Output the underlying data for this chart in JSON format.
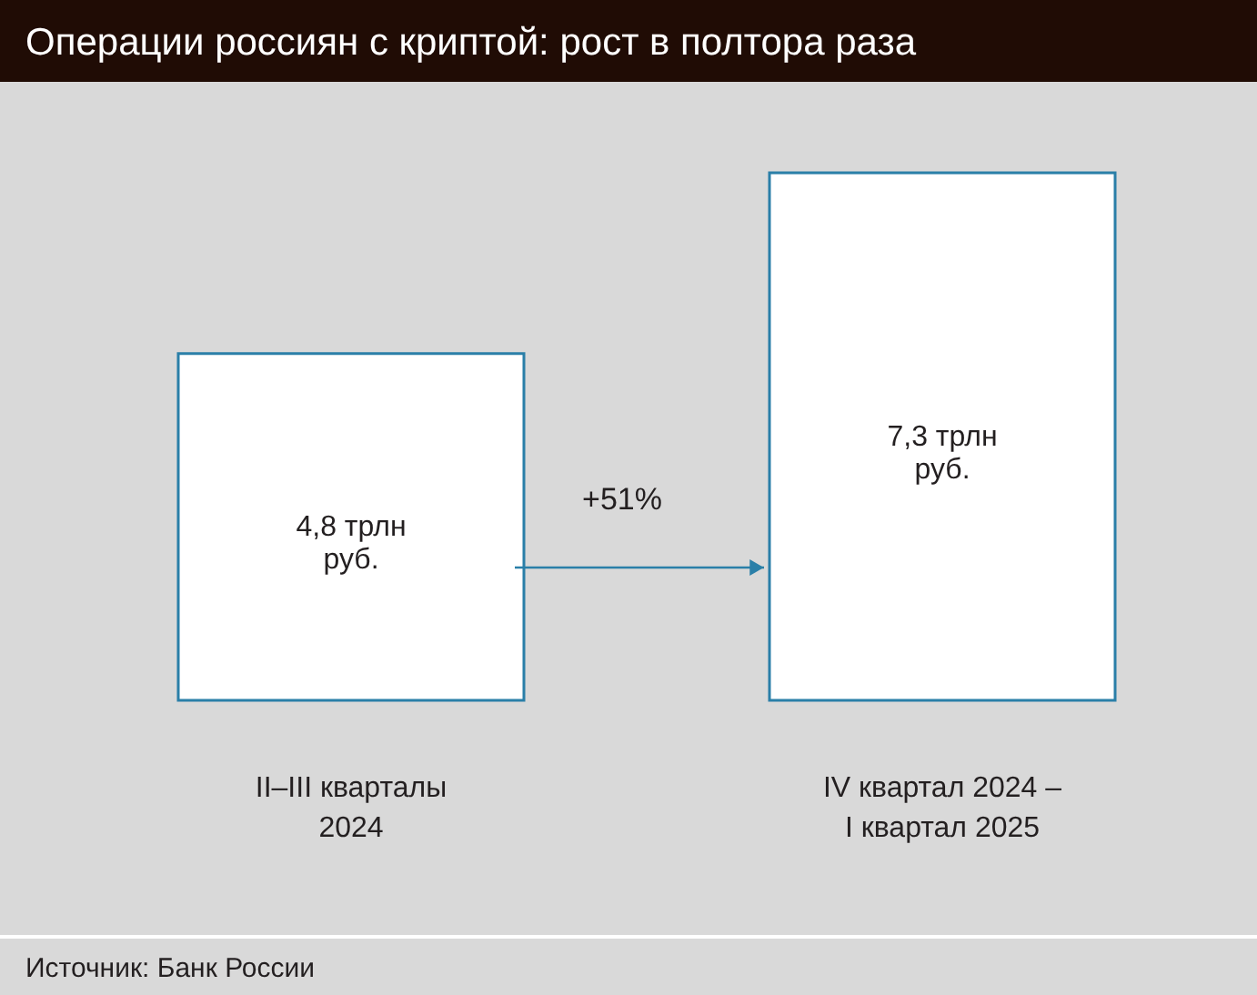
{
  "chart_data": {
    "type": "bar",
    "title": "Операции россиян с криптой: рост в полтора раза",
    "categories": [
      "II–III кварталы\n2024",
      "IV квартал 2024 –\nI квартал 2025"
    ],
    "values": [
      4.8,
      7.3
    ],
    "value_labels": [
      "4,8 трлн\nруб.",
      "7,3 трлн\nруб."
    ],
    "color": "#ffffff",
    "annotations": [
      "+51%",
      "Источник: Банк России"
    ]
  }
}
